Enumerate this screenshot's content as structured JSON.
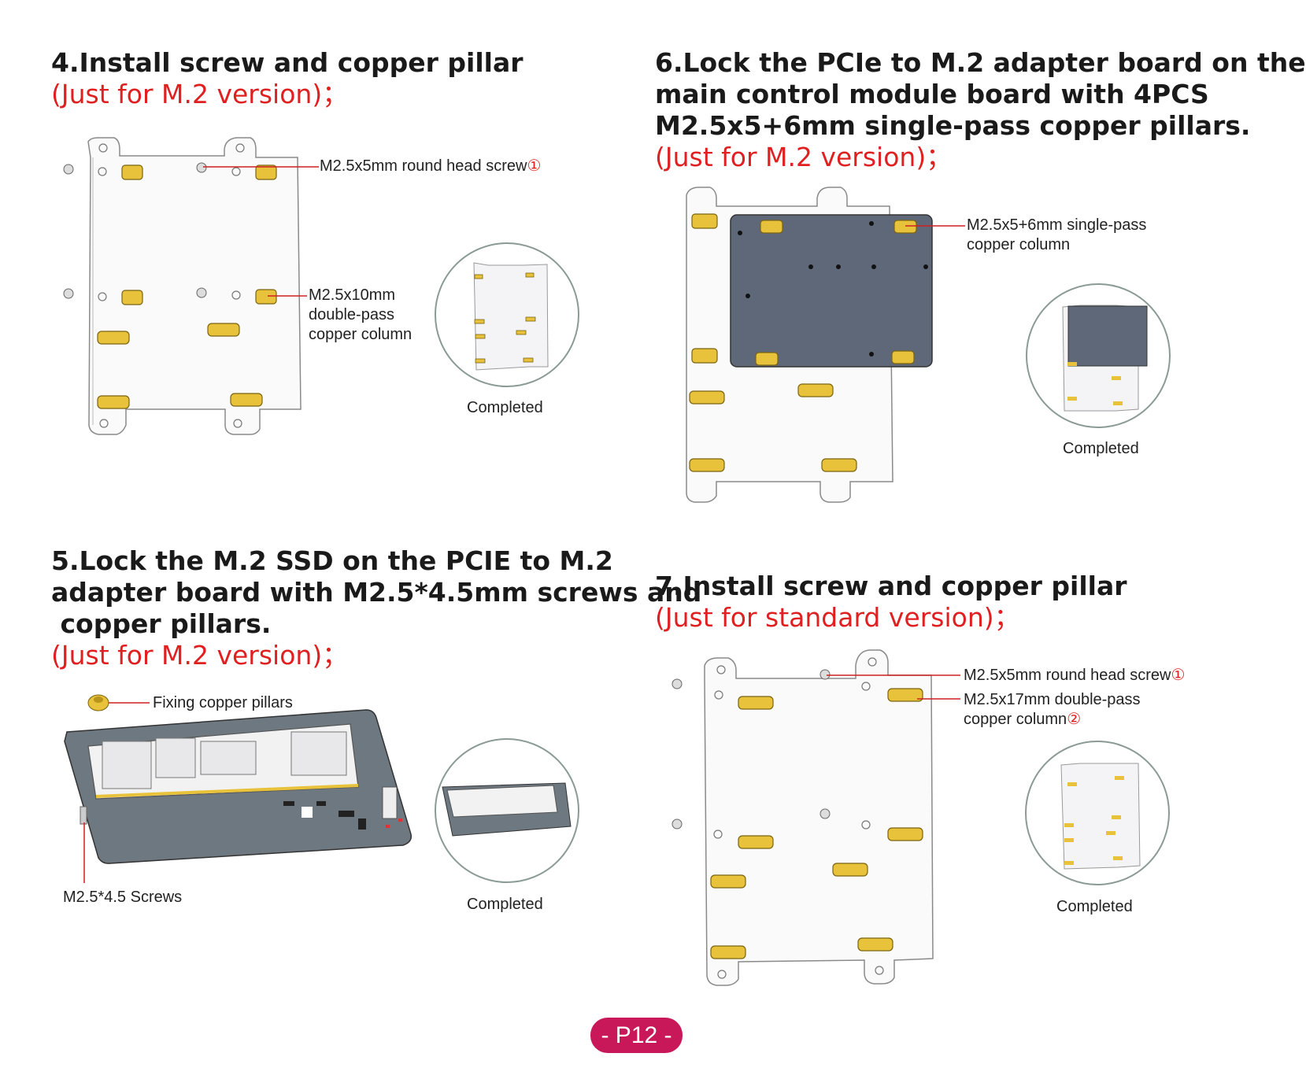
{
  "step4": {
    "title": "4.Install screw and copper pillar",
    "note": "(Just for M.2 version)；",
    "callout_screw": "M2.5x5mm round head screw",
    "callout_screw_num": "①",
    "callout_pillar_lines": [
      "M2.5x10mm",
      "double-pass",
      "copper column"
    ],
    "completed": "Completed"
  },
  "step5": {
    "title_lines": [
      "5.Lock the M.2 SSD on the PCIE to M.2",
      "adapter board with M2.5*4.5mm screws and",
      " copper pillars."
    ],
    "note": "(Just for M.2 version)；",
    "callout_pillars": "Fixing copper pillars",
    "callout_screws": "M2.5*4.5 Screws",
    "completed": "Completed"
  },
  "step6": {
    "title_lines": [
      "6.Lock the PCIe to M.2 adapter board on the",
      "main control module board with 4PCS",
      "M2.5x5+6mm single-pass copper pillars."
    ],
    "note": "(Just for M.2 version)；",
    "callout_lines": [
      "M2.5x5+6mm single-pass",
      "copper column"
    ],
    "completed": "Completed"
  },
  "step7": {
    "title": "7.Install screw and copper pillar",
    "note": "(Just for standard version)；",
    "callout_screw": "M2.5x5mm round head screw",
    "callout_screw_num": "①",
    "callout_pillar_line1": "M2.5x17mm double-pass",
    "callout_pillar_line2": "copper column",
    "callout_pillar_num": "②",
    "completed": "Completed"
  },
  "page": {
    "label": "- P12 -"
  },
  "colors": {
    "accent_red": "#e02020",
    "badge": "#c8185a",
    "brass": "#e8c23a",
    "board_dark": "#5f6878",
    "pcb": "#6e7880"
  }
}
